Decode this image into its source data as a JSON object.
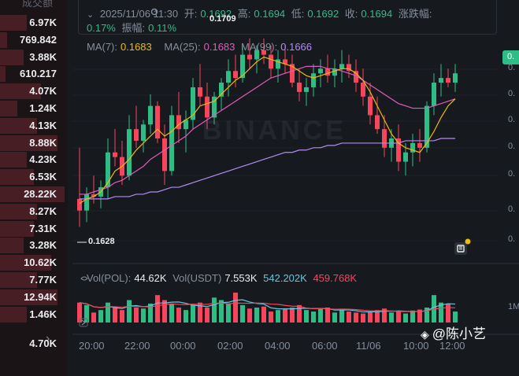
{
  "order_list": {
    "header": "成交额",
    "rows": [
      {
        "value": "6.97K",
        "depth": 0.4
      },
      {
        "value": "769.842",
        "depth": 0.1
      },
      {
        "value": "3.88K",
        "depth": 0.35
      },
      {
        "value": "610.217",
        "depth": 0.08
      },
      {
        "value": "4.07K",
        "depth": 0.6
      },
      {
        "value": "1.24K",
        "depth": 0.25
      },
      {
        "value": "4.13K",
        "depth": 0.55
      },
      {
        "value": "8.88K",
        "depth": 0.85
      },
      {
        "value": "4.23K",
        "depth": 0.4
      },
      {
        "value": "6.53K",
        "depth": 0.5
      },
      {
        "value": "28.22K",
        "depth": 0.95
      },
      {
        "value": "8.27K",
        "depth": 0.55
      },
      {
        "value": "7.31K",
        "depth": 0.5
      },
      {
        "value": "3.28K",
        "depth": 0.35
      },
      {
        "value": "10.62K",
        "depth": 0.75
      },
      {
        "value": "7.77K",
        "depth": 0.55
      },
      {
        "value": "12.94K",
        "depth": 0.85
      },
      {
        "value": "1.46K",
        "depth": 0.4
      }
    ],
    "chevron": "›",
    "footer_value": "4.70K"
  },
  "ohlc": {
    "datetime": "2025/11/06 11:30",
    "open_label": "开:",
    "open": "0.1692",
    "high_label": "高:",
    "high": "0.1694",
    "low_label": "低:",
    "low": "0.1692",
    "close_label": "收:",
    "close": "0.1694",
    "change_label": "涨跌幅:",
    "change": "0.17%",
    "amp_label": "振幅:",
    "amp": "0.11%"
  },
  "ma_legend": {
    "ma7_label": "MA(7):",
    "ma7_value": "0.1683",
    "ma25_label": "MA(25):",
    "ma25_value": "0.1683",
    "ma99_label": "MA(99):",
    "ma99_value": "0.1666"
  },
  "vol_legend": {
    "pol_label": "Vol(POL):",
    "pol_value": "44.62K",
    "usdt_label": "Vol(USDT)",
    "usdt_value": "7.553K",
    "ma1_value": "542.202K",
    "ma2_value": "459.768K"
  },
  "annotations": {
    "high_marker": "0.1709",
    "low_marker": "0.1628"
  },
  "price_badge": "0.",
  "y_axis_labels": [
    "0.",
    "0.",
    "0.",
    "0.",
    "0.",
    "0.",
    "0."
  ],
  "vol_axis_label": "1M",
  "x_axis_labels": [
    "20:00",
    "22:00",
    "00:00",
    "02:00",
    "04:00",
    "06:00",
    "11/06",
    "10:00",
    "12:00"
  ],
  "watermark": "BINANCE",
  "author_tag": "@陈小艺",
  "colors": {
    "up": "#2ebd85",
    "down": "#f6465d",
    "ma7": "#f0b90b",
    "ma25": "#e05bbd",
    "ma99": "#b58af5",
    "vol_ma1": "#63c7e0"
  },
  "chart_data": {
    "type": "candlestick",
    "x_labels": [
      "20:00",
      "22:00",
      "00:00",
      "02:00",
      "04:00",
      "06:00",
      "11/06",
      "10:00",
      "12:00"
    ],
    "candles": [
      [
        0.164,
        0.1662,
        0.1628,
        0.1635
      ],
      [
        0.1635,
        0.1645,
        0.163,
        0.1642
      ],
      [
        0.1642,
        0.165,
        0.1638,
        0.1641
      ],
      [
        0.1641,
        0.1648,
        0.1636,
        0.1645
      ],
      [
        0.1645,
        0.1666,
        0.164,
        0.166
      ],
      [
        0.166,
        0.167,
        0.1654,
        0.1658
      ],
      [
        0.1658,
        0.1665,
        0.1646,
        0.165
      ],
      [
        0.165,
        0.1676,
        0.1648,
        0.167
      ],
      [
        0.167,
        0.168,
        0.1662,
        0.1665
      ],
      [
        0.1665,
        0.1674,
        0.166,
        0.1672
      ],
      [
        0.1672,
        0.1685,
        0.1668,
        0.168
      ],
      [
        0.168,
        0.1682,
        0.1664,
        0.1666
      ],
      [
        0.1666,
        0.1672,
        0.1646,
        0.1652
      ],
      [
        0.1652,
        0.168,
        0.165,
        0.1676
      ],
      [
        0.1676,
        0.1686,
        0.1664,
        0.167
      ],
      [
        0.167,
        0.1678,
        0.166,
        0.1674
      ],
      [
        0.1674,
        0.1692,
        0.167,
        0.1688
      ],
      [
        0.1688,
        0.1698,
        0.168,
        0.1684
      ],
      [
        0.1684,
        0.169,
        0.167,
        0.1675
      ],
      [
        0.1675,
        0.1686,
        0.1672,
        0.1684
      ],
      [
        0.1684,
        0.1692,
        0.1678,
        0.169
      ],
      [
        0.169,
        0.17,
        0.1684,
        0.1695
      ],
      [
        0.1695,
        0.1702,
        0.1688,
        0.1692
      ],
      [
        0.1692,
        0.1706,
        0.169,
        0.1702
      ],
      [
        0.1702,
        0.1709,
        0.1696,
        0.17
      ],
      [
        0.17,
        0.1706,
        0.1694,
        0.1704
      ],
      [
        0.1704,
        0.1709,
        0.1698,
        0.1702
      ],
      [
        0.1702,
        0.1706,
        0.1692,
        0.1696
      ],
      [
        0.1696,
        0.1704,
        0.169,
        0.17
      ],
      [
        0.17,
        0.1706,
        0.1694,
        0.1698
      ],
      [
        0.1698,
        0.1702,
        0.1688,
        0.169
      ],
      [
        0.169,
        0.1696,
        0.1682,
        0.1686
      ],
      [
        0.1686,
        0.1692,
        0.168,
        0.1688
      ],
      [
        0.1688,
        0.1698,
        0.1684,
        0.1694
      ],
      [
        0.1694,
        0.17,
        0.1688,
        0.1696
      ],
      [
        0.1696,
        0.1702,
        0.169,
        0.1693
      ],
      [
        0.1693,
        0.17,
        0.1688,
        0.1696
      ],
      [
        0.1696,
        0.1704,
        0.169,
        0.1698
      ],
      [
        0.1698,
        0.1702,
        0.1692,
        0.1695
      ],
      [
        0.1695,
        0.17,
        0.1686,
        0.169
      ],
      [
        0.169,
        0.1696,
        0.168,
        0.1684
      ],
      [
        0.1684,
        0.169,
        0.1672,
        0.1676
      ],
      [
        0.1676,
        0.1684,
        0.1668,
        0.167
      ],
      [
        0.167,
        0.1676,
        0.1658,
        0.1662
      ],
      [
        0.1662,
        0.167,
        0.1656,
        0.1666
      ],
      [
        0.1666,
        0.1672,
        0.1652,
        0.1656
      ],
      [
        0.1656,
        0.1664,
        0.165,
        0.166
      ],
      [
        0.166,
        0.1668,
        0.1654,
        0.1664
      ],
      [
        0.1664,
        0.167,
        0.1656,
        0.1662
      ],
      [
        0.1662,
        0.1682,
        0.166,
        0.168
      ],
      [
        0.168,
        0.1694,
        0.1676,
        0.169
      ],
      [
        0.169,
        0.1698,
        0.1684,
        0.1692
      ],
      [
        0.1692,
        0.1696,
        0.1688,
        0.169
      ],
      [
        0.169,
        0.1698,
        0.1686,
        0.1694
      ]
    ],
    "volume": [
      40,
      35,
      20,
      25,
      40,
      30,
      25,
      45,
      30,
      28,
      38,
      55,
      45,
      38,
      30,
      25,
      35,
      40,
      30,
      50,
      45,
      38,
      60,
      35,
      28,
      30,
      32,
      22,
      25,
      28,
      30,
      35,
      25,
      22,
      28,
      30,
      20,
      26,
      22,
      20,
      18,
      22,
      25,
      28,
      20,
      22,
      18,
      24,
      26,
      30,
      55,
      40,
      38,
      22
    ],
    "ma7": [
      0.1638,
      0.164,
      0.1641,
      0.1643,
      0.1647,
      0.1652,
      0.1654,
      0.1657,
      0.1661,
      0.1664,
      0.1667,
      0.167,
      0.1667,
      0.1669,
      0.1672,
      0.1674,
      0.1676,
      0.168,
      0.1681,
      0.1682,
      0.1685,
      0.1688,
      0.1691,
      0.1693,
      0.1696,
      0.1699,
      0.1701,
      0.17,
      0.1699,
      0.1698,
      0.1697,
      0.1695,
      0.1693,
      0.1692,
      0.1693,
      0.1694,
      0.1695,
      0.1696,
      0.1696,
      0.1694,
      0.1691,
      0.1686,
      0.168,
      0.1674,
      0.1668,
      0.1664,
      0.1662,
      0.1661,
      0.166,
      0.1664,
      0.1669,
      0.1675,
      0.168,
      0.1683
    ],
    "ma25": [
      0.1642,
      0.1642,
      0.1643,
      0.1644,
      0.1645,
      0.1647,
      0.1648,
      0.165,
      0.1652,
      0.1654,
      0.1657,
      0.1659,
      0.1661,
      0.1663,
      0.1665,
      0.1667,
      0.167,
      0.1672,
      0.1674,
      0.1676,
      0.1678,
      0.168,
      0.1682,
      0.1684,
      0.1686,
      0.1688,
      0.169,
      0.1692,
      0.1693,
      0.1694,
      0.1695,
      0.1696,
      0.1697,
      0.1697,
      0.1697,
      0.1696,
      0.1696,
      0.1695,
      0.1694,
      0.1693,
      0.1691,
      0.1689,
      0.1687,
      0.1685,
      0.1683,
      0.1681,
      0.168,
      0.1679,
      0.1679,
      0.1679,
      0.168,
      0.1681,
      0.1682,
      0.1683
    ],
    "ma99": [
      0.164,
      0.164,
      0.164,
      0.164,
      0.164,
      0.1641,
      0.1641,
      0.1641,
      0.1642,
      0.1642,
      0.1643,
      0.1643,
      0.1644,
      0.1645,
      0.1645,
      0.1646,
      0.1647,
      0.1648,
      0.1649,
      0.165,
      0.1651,
      0.1652,
      0.1653,
      0.1654,
      0.1655,
      0.1656,
      0.1657,
      0.1658,
      0.1659,
      0.166,
      0.166,
      0.1661,
      0.1661,
      0.1662,
      0.1662,
      0.1663,
      0.1663,
      0.1664,
      0.1664,
      0.1664,
      0.1664,
      0.1664,
      0.1664,
      0.1664,
      0.1664,
      0.1664,
      0.1665,
      0.1665,
      0.1665,
      0.1665,
      0.1665,
      0.1666,
      0.1666,
      0.1666
    ],
    "y_range": [
      0.162,
      0.1712
    ]
  }
}
